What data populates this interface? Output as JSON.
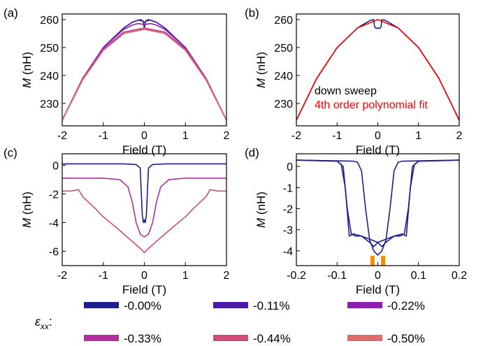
{
  "figure": {
    "legend": {
      "symbol": "ε",
      "symbol_sub": "xx",
      "symbol_suffix": ":",
      "entries": [
        {
          "label": "-0.00%",
          "color": "#1c1f8c"
        },
        {
          "label": "-0.11%",
          "color": "#4a1aa8"
        },
        {
          "label": "-0.22%",
          "color": "#8a1fb0"
        },
        {
          "label": "-0.33%",
          "color": "#b0309e"
        },
        {
          "label": "-0.44%",
          "color": "#cf4f7a"
        },
        {
          "label": "-0.50%",
          "color": "#de6c6c"
        }
      ]
    }
  },
  "chart_data": [
    {
      "panel_label": "(a)",
      "type": "line",
      "xlabel": "Field (T)",
      "ylabel_italic": "M",
      "ylabel_unit": " (nH)",
      "xlim": [
        -2,
        2
      ],
      "ylim": [
        222,
        262
      ],
      "xticks": [
        -2,
        -1,
        0,
        1,
        2
      ],
      "yticks": [
        230,
        240,
        250,
        260
      ],
      "series": [
        {
          "color": "#1c1f8c",
          "x": [
            -2,
            -1.5,
            -1,
            -0.5,
            -0.3,
            -0.1,
            -0.03,
            0,
            0.03,
            0.1,
            0.3,
            0.5,
            1,
            1.5,
            2
          ],
          "y": [
            224,
            239,
            250,
            257,
            259,
            260,
            259.5,
            257,
            259.5,
            260,
            259,
            257,
            250,
            239,
            224
          ]
        },
        {
          "color": "#4a1aa8",
          "x": [
            -2,
            -1.5,
            -1,
            -0.5,
            -0.3,
            -0.15,
            -0.05,
            0,
            0.05,
            0.15,
            0.3,
            0.5,
            1,
            1.5,
            2
          ],
          "y": [
            224,
            239,
            250,
            257,
            259,
            259.8,
            259.5,
            259,
            259.5,
            259.8,
            259,
            257,
            250,
            239,
            224
          ]
        },
        {
          "color": "#8a1fb0",
          "x": [
            -2,
            -1.5,
            -1,
            -0.5,
            -0.3,
            -0.15,
            0,
            0.15,
            0.3,
            0.5,
            1,
            1.5,
            2
          ],
          "y": [
            224,
            239,
            250,
            256.5,
            258,
            258.6,
            258.2,
            258.6,
            258,
            256.5,
            250,
            239,
            224
          ]
        },
        {
          "color": "#b0309e",
          "x": [
            -2,
            -1.5,
            -1,
            -0.5,
            0,
            0.5,
            1,
            1.5,
            2
          ],
          "y": [
            224,
            239,
            249.5,
            255.5,
            257,
            255.5,
            249.5,
            239,
            224
          ]
        },
        {
          "color": "#cf4f7a",
          "x": [
            -2,
            -1.5,
            -1,
            -0.5,
            0,
            0.5,
            1,
            1.5,
            2
          ],
          "y": [
            224,
            238.5,
            249,
            255,
            256.5,
            255,
            249,
            238.5,
            224
          ]
        },
        {
          "color": "#de6c6c",
          "x": [
            -2,
            -1.5,
            -1,
            -0.5,
            0,
            0.5,
            1,
            1.5,
            2
          ],
          "y": [
            224,
            238.5,
            249,
            255,
            256.8,
            255,
            249,
            238.5,
            224
          ]
        }
      ]
    },
    {
      "panel_label": "(b)",
      "type": "line",
      "xlabel": "Field (T)",
      "ylabel_italic": "M",
      "ylabel_unit": " (nH)",
      "xlim": [
        -2,
        2
      ],
      "ylim": [
        222,
        262
      ],
      "xticks": [
        -2,
        -1,
        0,
        1,
        2
      ],
      "yticks": [
        230,
        240,
        250,
        260
      ],
      "annotations": [
        {
          "text": "down sweep",
          "color": "#000000"
        },
        {
          "text": "4th order polynomial fit",
          "color": "#ff0000"
        }
      ],
      "series": [
        {
          "color": "#1c1f8c",
          "x": [
            -2,
            -1.5,
            -1,
            -0.5,
            -0.2,
            -0.1,
            -0.08,
            -0.04,
            0,
            0.04,
            0.08,
            0.1,
            0.2,
            0.5,
            1,
            1.5,
            2
          ],
          "y": [
            224,
            239,
            250,
            257,
            259.6,
            260,
            257.5,
            256.8,
            257,
            256.8,
            257.5,
            260,
            259.6,
            257,
            250,
            239,
            224
          ]
        },
        {
          "color": "#ff0000",
          "x": [
            -2,
            -1.5,
            -1,
            -0.5,
            0,
            0.5,
            1,
            1.5,
            2
          ],
          "y": [
            224,
            239,
            250,
            257,
            260,
            257,
            250,
            239,
            224
          ]
        }
      ]
    },
    {
      "panel_label": "(c)",
      "type": "line",
      "xlabel": "Field (T)",
      "ylabel_italic": "M",
      "ylabel_unit": " (nH)",
      "xlim": [
        -2,
        2
      ],
      "ylim": [
        -7,
        0.8
      ],
      "xticks": [
        -2,
        -1,
        0,
        1,
        2
      ],
      "yticks": [
        -6,
        -4,
        -2,
        0
      ],
      "series": [
        {
          "color": "#1c1f8c",
          "x": [
            -2,
            -1,
            -0.5,
            -0.2,
            -0.1,
            -0.05,
            -0.02,
            0,
            0.02,
            0.05,
            0.1,
            0.2,
            0.5,
            1,
            2
          ],
          "y": [
            0.1,
            0.1,
            0.1,
            0.05,
            -0.2,
            -3.5,
            -4,
            -3.8,
            -4,
            -3.5,
            -0.2,
            0.05,
            0.1,
            0.1,
            0.1
          ]
        },
        {
          "color": "#b0309e",
          "x": [
            -2,
            -1,
            -0.6,
            -0.4,
            -0.3,
            -0.2,
            -0.1,
            0,
            0.1,
            0.2,
            0.3,
            0.4,
            0.6,
            1,
            2
          ],
          "y": [
            -0.9,
            -0.9,
            -1.0,
            -1.5,
            -2.5,
            -4.0,
            -4.8,
            -5.0,
            -4.8,
            -4.0,
            -2.5,
            -1.5,
            -1.0,
            -0.9,
            -0.9
          ]
        },
        {
          "color": "#cf4f7a",
          "x": [
            -2,
            -1.8,
            -1.6,
            -1.5,
            -1.2,
            -1,
            -0.7,
            -0.5,
            -0.3,
            -0.1,
            0,
            0.1,
            0.3,
            0.5,
            0.7,
            1,
            1.2,
            1.5,
            1.6,
            1.8,
            2
          ],
          "y": [
            -1.8,
            -1.8,
            -1.7,
            -2.2,
            -3.0,
            -3.6,
            -4.3,
            -4.8,
            -5.3,
            -5.8,
            -6.1,
            -5.8,
            -5.3,
            -4.8,
            -4.3,
            -3.6,
            -3.0,
            -2.2,
            -1.7,
            -1.8,
            -1.8
          ]
        }
      ]
    },
    {
      "panel_label": "(d)",
      "type": "line",
      "xlabel": "Field (T)",
      "ylabel_italic": "M",
      "ylabel_unit": " (nH)",
      "xlim": [
        -0.2,
        0.2
      ],
      "ylim": [
        -4.7,
        0.6
      ],
      "xticks": [
        -0.2,
        -0.1,
        0,
        0.1,
        0.2
      ],
      "yticks": [
        -4,
        -3,
        -2,
        -1,
        0
      ],
      "markers": [
        {
          "x": -0.013,
          "color": "#ff8c00"
        },
        {
          "x": 0.013,
          "color": "#ff8c00"
        }
      ],
      "series": [
        {
          "color": "#1c1f8c",
          "x": [
            -0.2,
            -0.1,
            -0.085,
            -0.075,
            -0.065,
            -0.055,
            -0.04,
            -0.02,
            0,
            0.01,
            0.02,
            0.04,
            0.06,
            0.07,
            0.08,
            0.09,
            0.1,
            0.2
          ],
          "y": [
            0.3,
            0.25,
            0,
            -2.0,
            -3.2,
            -3.3,
            -3.3,
            -3.45,
            -3.6,
            -3.8,
            -3.6,
            -3.3,
            -3.2,
            -3.3,
            -1.0,
            0.1,
            0.25,
            0.3
          ]
        },
        {
          "color": "#1c1f8c",
          "x": [
            -0.2,
            -0.1,
            -0.09,
            -0.08,
            -0.07,
            -0.06,
            -0.04,
            -0.02,
            -0.01,
            0,
            0.02,
            0.04,
            0.055,
            0.065,
            0.075,
            0.085,
            0.1,
            0.2
          ],
          "y": [
            0.3,
            0.25,
            0.1,
            -1.0,
            -3.3,
            -3.2,
            -3.3,
            -3.6,
            -3.8,
            -3.6,
            -3.45,
            -3.3,
            -3.3,
            -3.2,
            -2.0,
            0,
            0.25,
            0.3
          ]
        },
        {
          "color": "#1c1f8c",
          "x": [
            -0.2,
            -0.06,
            -0.05,
            -0.04,
            -0.03,
            -0.02,
            -0.01,
            0,
            0.01,
            0.02,
            0.03,
            0.04,
            0.05,
            0.06,
            0.2
          ],
          "y": [
            0.3,
            0.25,
            0.2,
            -0.2,
            -2.0,
            -3.5,
            -4.0,
            -4.2,
            -4.0,
            -3.5,
            -2.0,
            -0.2,
            0.2,
            0.25,
            0.3
          ]
        }
      ]
    }
  ]
}
